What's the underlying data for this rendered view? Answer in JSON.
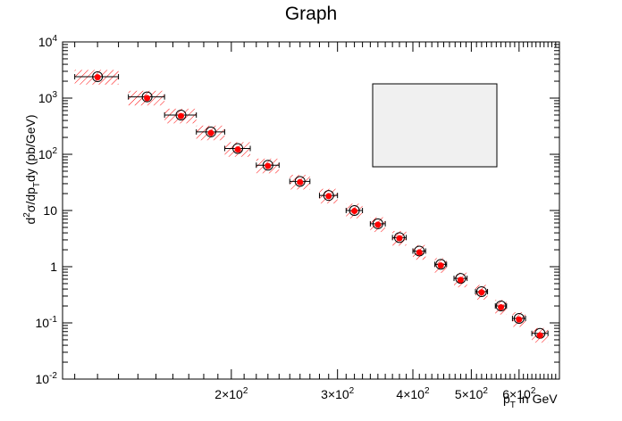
{
  "chart_data": {
    "type": "scatter",
    "title": "Graph",
    "xlabel": {
      "base": "p",
      "sub": "T",
      "rest": " in GeV"
    },
    "ylabel": {
      "p1": "d",
      "sup": "2",
      "p2": "σ/dp",
      "sub": "T",
      "p3": "dy (pb/GeV)"
    },
    "x_scale": "log",
    "y_scale": "log",
    "xlim": [
      105,
      700
    ],
    "ylim": [
      0.01,
      10000
    ],
    "grid": false,
    "legend": "empty box, center-right",
    "x_ticks": [
      {
        "value": 200,
        "mantissa": "2×10",
        "exp": "2"
      },
      {
        "value": 300,
        "mantissa": "3×10",
        "exp": "2"
      },
      {
        "value": 400,
        "mantissa": "4×10",
        "exp": "2"
      },
      {
        "value": 500,
        "mantissa": "5×10",
        "exp": "2"
      },
      {
        "value": 600,
        "mantissa": "6×10",
        "exp": "2"
      }
    ],
    "y_ticks": [
      {
        "value": 0.01,
        "base": "10",
        "exp": "-2"
      },
      {
        "value": 0.1,
        "base": "10",
        "exp": "-1"
      },
      {
        "value": 1,
        "base": "1",
        "exp": ""
      },
      {
        "value": 10,
        "base": "10",
        "exp": ""
      },
      {
        "value": 100,
        "base": "10",
        "exp": "2"
      },
      {
        "value": 1000,
        "base": "10",
        "exp": "3"
      },
      {
        "value": 10000,
        "base": "10",
        "exp": "4"
      }
    ],
    "series": [
      {
        "marker": "open-circle",
        "x": [
          120,
          145,
          165,
          185,
          205,
          230,
          260,
          290,
          320,
          350,
          380,
          410,
          445,
          480,
          520,
          560,
          600,
          650
        ],
        "y": [
          2400,
          1050,
          500,
          250,
          127,
          64,
          33,
          18.5,
          10,
          5.8,
          3.3,
          1.9,
          1.1,
          0.62,
          0.36,
          0.2,
          0.12,
          0.065
        ],
        "x_err": [
          10,
          10,
          10,
          10,
          10,
          10,
          10,
          10,
          10,
          10,
          10,
          10,
          10,
          12,
          12,
          12,
          15,
          20
        ]
      },
      {
        "marker": "filled-circle",
        "color": "#ff0000",
        "band_color": "#ff0000",
        "x": [
          120,
          145,
          165,
          185,
          205,
          230,
          260,
          290,
          320,
          350,
          380,
          410,
          445,
          480,
          520,
          560,
          600,
          650
        ],
        "y": [
          2350,
          1000,
          480,
          240,
          122,
          62,
          32,
          18,
          9.8,
          5.6,
          3.2,
          1.8,
          1.05,
          0.58,
          0.35,
          0.19,
          0.115,
          0.06
        ],
        "x_err": [
          10,
          10,
          10,
          10,
          10,
          10,
          10,
          10,
          10,
          10,
          10,
          10,
          10,
          12,
          12,
          12,
          15,
          20
        ]
      }
    ]
  }
}
